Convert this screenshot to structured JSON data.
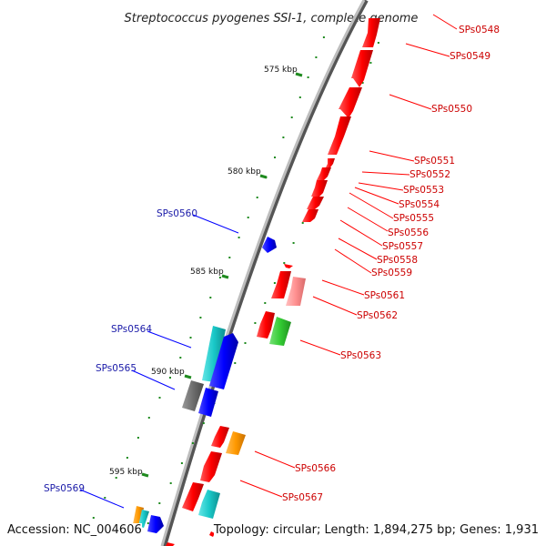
{
  "title": "Streptococcus pyogenes SSI-1, complete genome",
  "footer": {
    "accession": "Accession: NC_004606",
    "summary": "Topology: circular; Length: 1,894,275 bp; Genes: 1,931"
  },
  "scale": {
    "unit": "kbp",
    "labels": [
      "575 kbp",
      "580 kbp",
      "585 kbp",
      "590 kbp",
      "595 kbp"
    ]
  },
  "colors": {
    "plus_strand_gene": "#ff0000",
    "minus_strand_gene": "#0000ff",
    "label_plus": "#cc0000",
    "label_minus": "#1a1aa8",
    "backbone": "#8a8a8a",
    "tick": "#1f8a1f",
    "cyan": "#19c8c8",
    "gray": "#6e6e6e",
    "orange": "#ff9900",
    "green": "#33cc33",
    "pink": "#ff9090"
  },
  "genes_right": [
    "SPs0548",
    "SPs0549",
    "SPs0550",
    "SPs0551",
    "SPs0552",
    "SPs0553",
    "SPs0554",
    "SPs0555",
    "SPs0556",
    "SPs0557",
    "SPs0558",
    "SPs0559",
    "SPs0561",
    "SPs0562",
    "SPs0563",
    "SPs0566",
    "SPs0567"
  ],
  "genes_left": [
    "SPs0560",
    "SPs0564",
    "SPs0565",
    "SPs0569"
  ]
}
